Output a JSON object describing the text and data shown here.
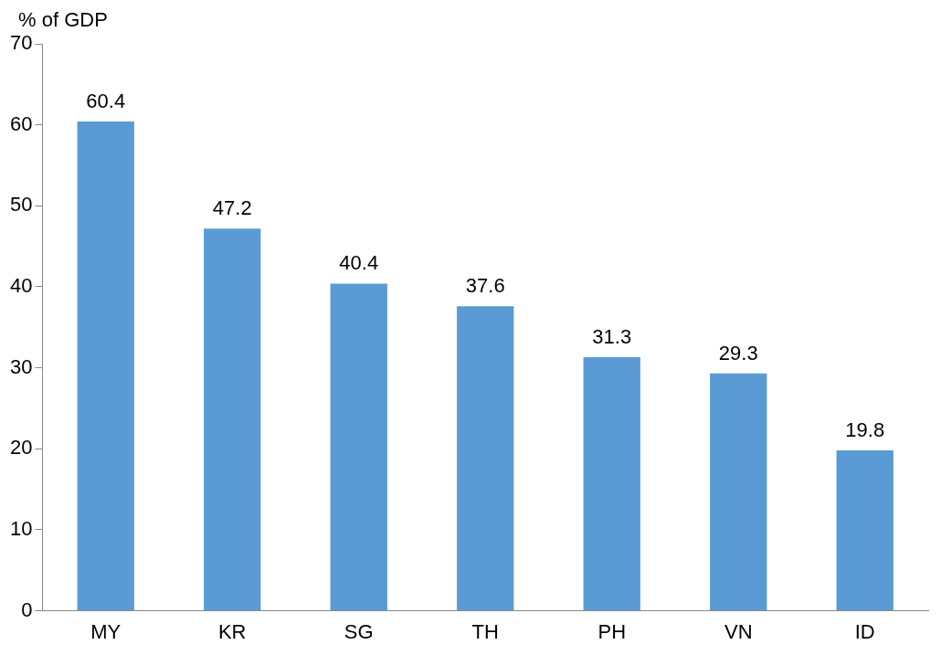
{
  "chart_data": {
    "type": "bar",
    "ylabel": "% of GDP",
    "categories": [
      "MY",
      "KR",
      "SG",
      "TH",
      "PH",
      "VN",
      "ID"
    ],
    "values": [
      60.4,
      47.2,
      40.4,
      37.6,
      31.3,
      29.3,
      19.8
    ],
    "color": "#5b9bd5",
    "ylim": [
      0,
      70
    ],
    "yticks": [
      0,
      10,
      20,
      30,
      40,
      50,
      60,
      70
    ],
    "grid": false,
    "legend": false,
    "data_labels": true
  }
}
